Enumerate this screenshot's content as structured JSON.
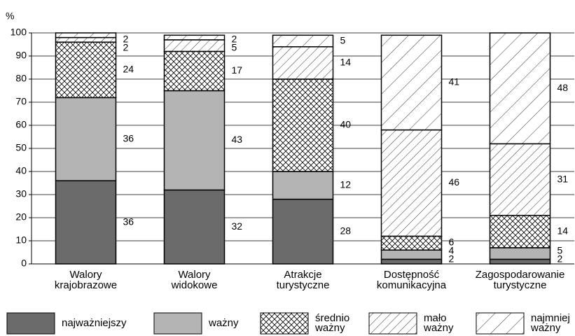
{
  "chart_data": {
    "type": "stacked_bar",
    "y_axis_label": "%",
    "categories": [
      "Walory\nkrajobrazowe",
      "Walory\nwidokowe",
      "Atrakcje\nturystyczne",
      "Dostępność\nkomunikacyjna",
      "Zagospodarowanie\nturystyczne"
    ],
    "series": [
      {
        "name": "najważniejszy",
        "color": "#6b6b6b",
        "pattern": "solid",
        "values": [
          36,
          32,
          28,
          2,
          2
        ]
      },
      {
        "name": "ważny",
        "color": "#b4b4b4",
        "pattern": "solid",
        "values": [
          36,
          43,
          12,
          4,
          5
        ]
      },
      {
        "name": "średnio\nważny",
        "color": "#ffffff",
        "pattern": "crosshatch",
        "values": [
          24,
          17,
          40,
          6,
          14
        ]
      },
      {
        "name": "mało\nważny",
        "color": "#ffffff",
        "pattern": "hatch-dense",
        "values": [
          2,
          5,
          14,
          46,
          31
        ]
      },
      {
        "name": "najmniej\nważny",
        "color": "#ffffff",
        "pattern": "hatch-sparse",
        "values": [
          2,
          2,
          5,
          41,
          48
        ]
      }
    ],
    "ylim": [
      0,
      100
    ],
    "yticks": [
      0,
      10,
      20,
      30,
      40,
      50,
      60,
      70,
      80,
      90,
      100
    ],
    "grid": true
  }
}
